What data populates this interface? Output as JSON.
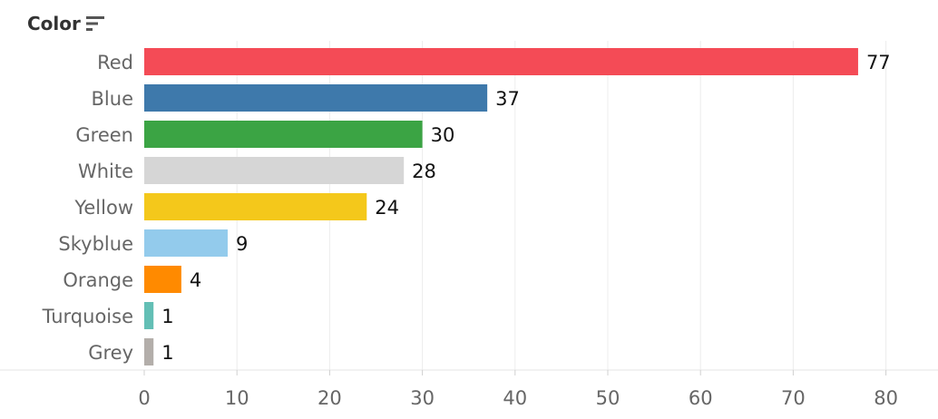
{
  "header": {
    "label": "Color",
    "sort_icon": "sort-descending-icon"
  },
  "chart_data": {
    "type": "bar",
    "orientation": "horizontal",
    "categories": [
      "Red",
      "Blue",
      "Green",
      "White",
      "Yellow",
      "Skyblue",
      "Orange",
      "Turquoise",
      "Grey"
    ],
    "values": [
      77,
      37,
      30,
      28,
      24,
      9,
      4,
      1,
      1
    ],
    "colors": [
      "#f44b56",
      "#3e79ab",
      "#3ba444",
      "#d6d6d6",
      "#f4c81b",
      "#93cbec",
      "#ff8a00",
      "#63bfb5",
      "#b3aeaa"
    ],
    "data_labels": [
      "77",
      "37",
      "30",
      "28",
      "24",
      "9",
      "4",
      "1",
      "1"
    ],
    "xlim": [
      0,
      85
    ],
    "xticks": [
      0,
      10,
      20,
      30,
      40,
      50,
      60,
      70,
      80
    ],
    "xtick_labels": [
      "0",
      "10",
      "20",
      "30",
      "40",
      "50",
      "60",
      "70",
      "80"
    ],
    "grid": true
  }
}
